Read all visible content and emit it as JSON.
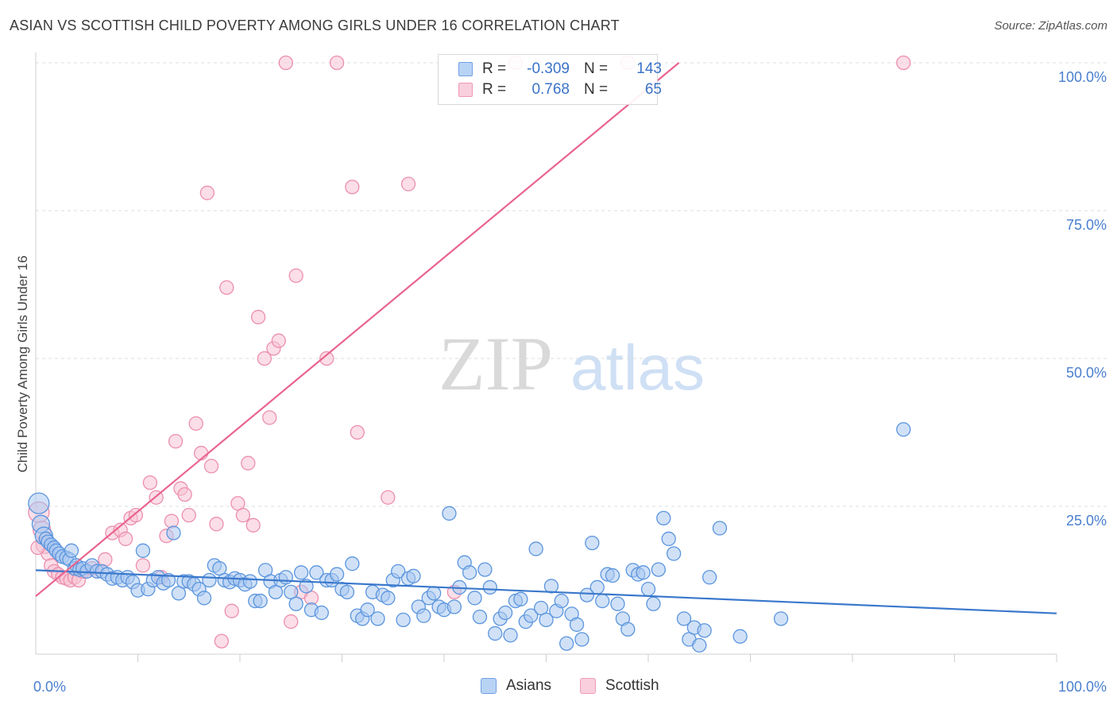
{
  "title": "ASIAN VS SCOTTISH CHILD POVERTY AMONG GIRLS UNDER 16 CORRELATION CHART",
  "source": "Source: ZipAtlas.com",
  "watermark": {
    "zip": "ZIP",
    "atlas": "atlas"
  },
  "legend": {
    "rows": [
      {
        "r_label": "R =",
        "r_value": "-0.309",
        "n_label": "N =",
        "n_value": "143",
        "color": "#6fa0e6"
      },
      {
        "r_label": "R =",
        "r_value": "0.768",
        "n_label": "N =",
        "n_value": "65",
        "color": "#f09ab6"
      }
    ]
  },
  "bottom_legend": {
    "asians": "Asians",
    "scottish": "Scottish"
  },
  "colors": {
    "asians_fill": "#a9c8f0",
    "asians_stroke": "#5b95de",
    "asians_line": "#3a78cc",
    "scottish_fill": "#f7c3d4",
    "scottish_stroke": "#ec8fae",
    "scottish_line": "#e8648f"
  },
  "chart_data": {
    "type": "scatter",
    "xlabel": "",
    "ylabel": "Child Poverty Among Girls Under 16",
    "xlim": [
      0,
      100
    ],
    "ylim": [
      0,
      100
    ],
    "x_tick_labels": [
      "0.0%",
      "100.0%"
    ],
    "y_tick_labels": [
      "25.0%",
      "50.0%",
      "75.0%",
      "100.0%"
    ],
    "y_ticks": [
      25,
      50,
      75,
      100
    ],
    "grid": true,
    "series": [
      {
        "name": "Asians",
        "trend": {
          "x": [
            0,
            100
          ],
          "y": [
            14.2,
            6.9
          ]
        },
        "points": [
          [
            0.3,
            25.5
          ],
          [
            0.5,
            22
          ],
          [
            0.8,
            20
          ],
          [
            1.0,
            19.5
          ],
          [
            1.2,
            19
          ],
          [
            1.5,
            18.5
          ],
          [
            1.8,
            18
          ],
          [
            2.0,
            17.5
          ],
          [
            2.3,
            17
          ],
          [
            2.6,
            16.5
          ],
          [
            3.0,
            16.3
          ],
          [
            3.3,
            16
          ],
          [
            3.5,
            17.5
          ],
          [
            3.8,
            14.5
          ],
          [
            4.0,
            15
          ],
          [
            4.3,
            14.3
          ],
          [
            4.6,
            14.5
          ],
          [
            5.0,
            14
          ],
          [
            5.5,
            15
          ],
          [
            6.0,
            14
          ],
          [
            6.5,
            14
          ],
          [
            7.0,
            13.5
          ],
          [
            7.5,
            12.8
          ],
          [
            8.0,
            13
          ],
          [
            8.5,
            12.5
          ],
          [
            9.0,
            13
          ],
          [
            9.5,
            12.2
          ],
          [
            10.0,
            10.8
          ],
          [
            10.5,
            17.5
          ],
          [
            11.0,
            11
          ],
          [
            11.5,
            12.5
          ],
          [
            12.0,
            13
          ],
          [
            12.5,
            12
          ],
          [
            13.0,
            12.5
          ],
          [
            13.5,
            20.5
          ],
          [
            14.0,
            10.3
          ],
          [
            14.5,
            12.3
          ],
          [
            15.0,
            12.3
          ],
          [
            15.5,
            11.8
          ],
          [
            16.0,
            11
          ],
          [
            16.5,
            9.5
          ],
          [
            17.0,
            12.5
          ],
          [
            17.5,
            15
          ],
          [
            18.0,
            14.5
          ],
          [
            18.5,
            12.5
          ],
          [
            19.0,
            12.2
          ],
          [
            19.5,
            12.8
          ],
          [
            20.0,
            12.5
          ],
          [
            20.5,
            11.8
          ],
          [
            21.0,
            12.3
          ],
          [
            21.5,
            9
          ],
          [
            22.0,
            9
          ],
          [
            22.5,
            14.2
          ],
          [
            23.0,
            12.3
          ],
          [
            23.5,
            10.5
          ],
          [
            24.0,
            12.5
          ],
          [
            24.5,
            13
          ],
          [
            25.0,
            10.5
          ],
          [
            25.5,
            8.5
          ],
          [
            26.0,
            13.8
          ],
          [
            26.5,
            11.5
          ],
          [
            27.0,
            7.5
          ],
          [
            27.5,
            13.8
          ],
          [
            28.0,
            7
          ],
          [
            28.5,
            12.5
          ],
          [
            29.0,
            12.5
          ],
          [
            29.5,
            13.5
          ],
          [
            30.0,
            11
          ],
          [
            30.5,
            10.5
          ],
          [
            31.0,
            15.3
          ],
          [
            31.5,
            6.5
          ],
          [
            32.0,
            6
          ],
          [
            32.5,
            7.5
          ],
          [
            33.0,
            10.5
          ],
          [
            33.5,
            6
          ],
          [
            34.0,
            10
          ],
          [
            34.5,
            9.5
          ],
          [
            35.0,
            12.5
          ],
          [
            35.5,
            14
          ],
          [
            36.0,
            5.8
          ],
          [
            36.5,
            12.8
          ],
          [
            37.0,
            13.2
          ],
          [
            37.5,
            8
          ],
          [
            38.0,
            6.5
          ],
          [
            38.5,
            9.5
          ],
          [
            39.0,
            10.3
          ],
          [
            39.5,
            8
          ],
          [
            40.0,
            7.5
          ],
          [
            40.5,
            23.8
          ],
          [
            41.0,
            8
          ],
          [
            41.5,
            11.3
          ],
          [
            42.0,
            15.5
          ],
          [
            42.5,
            13.8
          ],
          [
            43.0,
            9.5
          ],
          [
            43.5,
            6.3
          ],
          [
            44.0,
            14.3
          ],
          [
            44.5,
            11.3
          ],
          [
            45.0,
            3.5
          ],
          [
            45.5,
            6
          ],
          [
            46.0,
            7
          ],
          [
            46.5,
            3.2
          ],
          [
            47.0,
            9
          ],
          [
            47.5,
            9.3
          ],
          [
            48.0,
            5.5
          ],
          [
            48.5,
            6.5
          ],
          [
            49.0,
            17.8
          ],
          [
            49.5,
            7.8
          ],
          [
            50.0,
            5.8
          ],
          [
            50.5,
            11.5
          ],
          [
            51.0,
            7.3
          ],
          [
            51.5,
            9
          ],
          [
            52.0,
            1.8
          ],
          [
            52.5,
            6.8
          ],
          [
            53.0,
            5
          ],
          [
            53.5,
            2.5
          ],
          [
            54.0,
            10
          ],
          [
            54.5,
            18.8
          ],
          [
            55.0,
            11.3
          ],
          [
            55.5,
            9
          ],
          [
            56.0,
            13.5
          ],
          [
            56.5,
            13.3
          ],
          [
            57.0,
            8.5
          ],
          [
            57.5,
            6
          ],
          [
            58.0,
            4.2
          ],
          [
            58.5,
            14.2
          ],
          [
            59.0,
            13.5
          ],
          [
            59.5,
            13.8
          ],
          [
            60.0,
            11
          ],
          [
            60.5,
            8.5
          ],
          [
            61.0,
            14.3
          ],
          [
            61.5,
            23
          ],
          [
            62.0,
            19.5
          ],
          [
            62.5,
            17
          ],
          [
            63.5,
            6
          ],
          [
            64.0,
            2.5
          ],
          [
            64.5,
            4.5
          ],
          [
            65.0,
            1.5
          ],
          [
            65.5,
            4
          ],
          [
            66.0,
            13
          ],
          [
            67.0,
            21.3
          ],
          [
            69.0,
            3
          ],
          [
            73.0,
            6
          ],
          [
            85.0,
            38
          ]
        ]
      },
      {
        "name": "Scottish",
        "trend": {
          "x": [
            0,
            63
          ],
          "y": [
            9.8,
            100
          ]
        },
        "points": [
          [
            0.3,
            24
          ],
          [
            0.6,
            21
          ],
          [
            0.9,
            18.5
          ],
          [
            1.2,
            17
          ],
          [
            1.5,
            15
          ],
          [
            1.8,
            14
          ],
          [
            2.2,
            13.5
          ],
          [
            2.6,
            13
          ],
          [
            3.0,
            12.8
          ],
          [
            3.4,
            12.5
          ],
          [
            3.8,
            13
          ],
          [
            4.2,
            12.5
          ],
          [
            4.6,
            14
          ],
          [
            5.0,
            14
          ],
          [
            5.5,
            14.5
          ],
          [
            6.0,
            14
          ],
          [
            6.8,
            16
          ],
          [
            7.5,
            20.5
          ],
          [
            8.3,
            21
          ],
          [
            8.8,
            19.5
          ],
          [
            9.3,
            23
          ],
          [
            9.8,
            23.5
          ],
          [
            10.5,
            15
          ],
          [
            11.2,
            29
          ],
          [
            11.8,
            26.5
          ],
          [
            12.3,
            13
          ],
          [
            12.8,
            20
          ],
          [
            13.3,
            22.5
          ],
          [
            13.7,
            36
          ],
          [
            14.2,
            28
          ],
          [
            14.6,
            27
          ],
          [
            15.0,
            23.5
          ],
          [
            15.7,
            39
          ],
          [
            16.2,
            34
          ],
          [
            16.8,
            78
          ],
          [
            17.2,
            31.8
          ],
          [
            17.7,
            22
          ],
          [
            18.2,
            2.2
          ],
          [
            18.7,
            62
          ],
          [
            19.2,
            7.3
          ],
          [
            19.8,
            25.5
          ],
          [
            20.3,
            23.5
          ],
          [
            20.8,
            32.3
          ],
          [
            21.3,
            21.8
          ],
          [
            21.8,
            57
          ],
          [
            22.4,
            50
          ],
          [
            22.9,
            40
          ],
          [
            23.3,
            51.7
          ],
          [
            23.8,
            53
          ],
          [
            24.5,
            100
          ],
          [
            25.0,
            5.5
          ],
          [
            25.5,
            64
          ],
          [
            26.0,
            10.5
          ],
          [
            27.0,
            9.5
          ],
          [
            28.5,
            50
          ],
          [
            29.5,
            100
          ],
          [
            31.0,
            79
          ],
          [
            31.5,
            37.5
          ],
          [
            34.5,
            26.5
          ],
          [
            36.5,
            79.5
          ],
          [
            41.0,
            10.5
          ],
          [
            47.0,
            100
          ],
          [
            58.0,
            100
          ],
          [
            85.0,
            100
          ],
          [
            0.2,
            18
          ]
        ]
      }
    ]
  }
}
